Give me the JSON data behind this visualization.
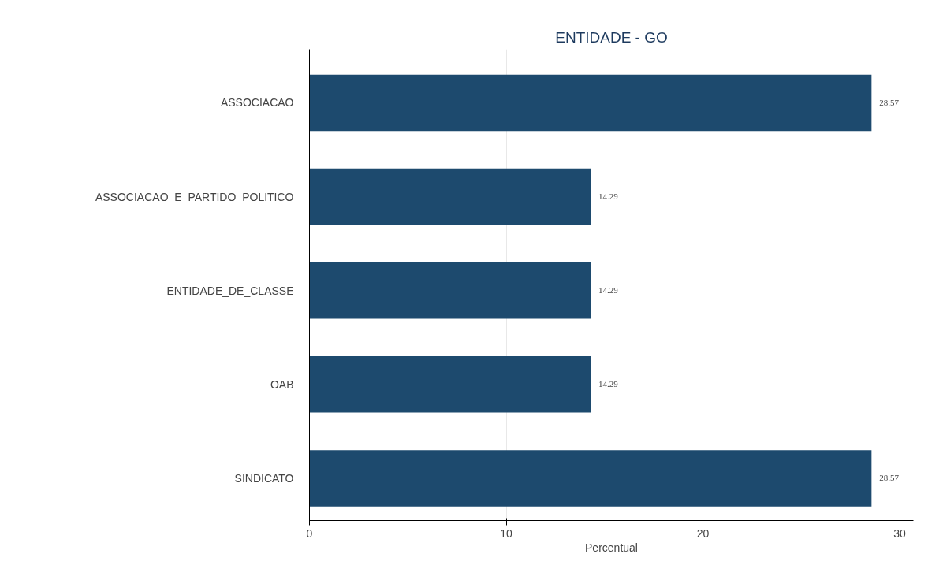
{
  "chart_data": {
    "type": "bar",
    "orientation": "horizontal",
    "title": "ENTIDADE - GO",
    "xlabel": "Percentual",
    "categories": [
      "ASSOCIACAO",
      "ASSOCIACAO_E_PARTIDO_POLITICO",
      "ENTIDADE_DE_CLASSE",
      "OAB",
      "SINDICATO"
    ],
    "values": [
      28.57,
      14.29,
      14.29,
      14.29,
      28.57
    ],
    "color": "#1d4a6e",
    "xlim": [
      0,
      30.7
    ],
    "xticks": [
      0,
      10,
      20,
      30
    ],
    "grid": "x",
    "data_labels": true
  }
}
